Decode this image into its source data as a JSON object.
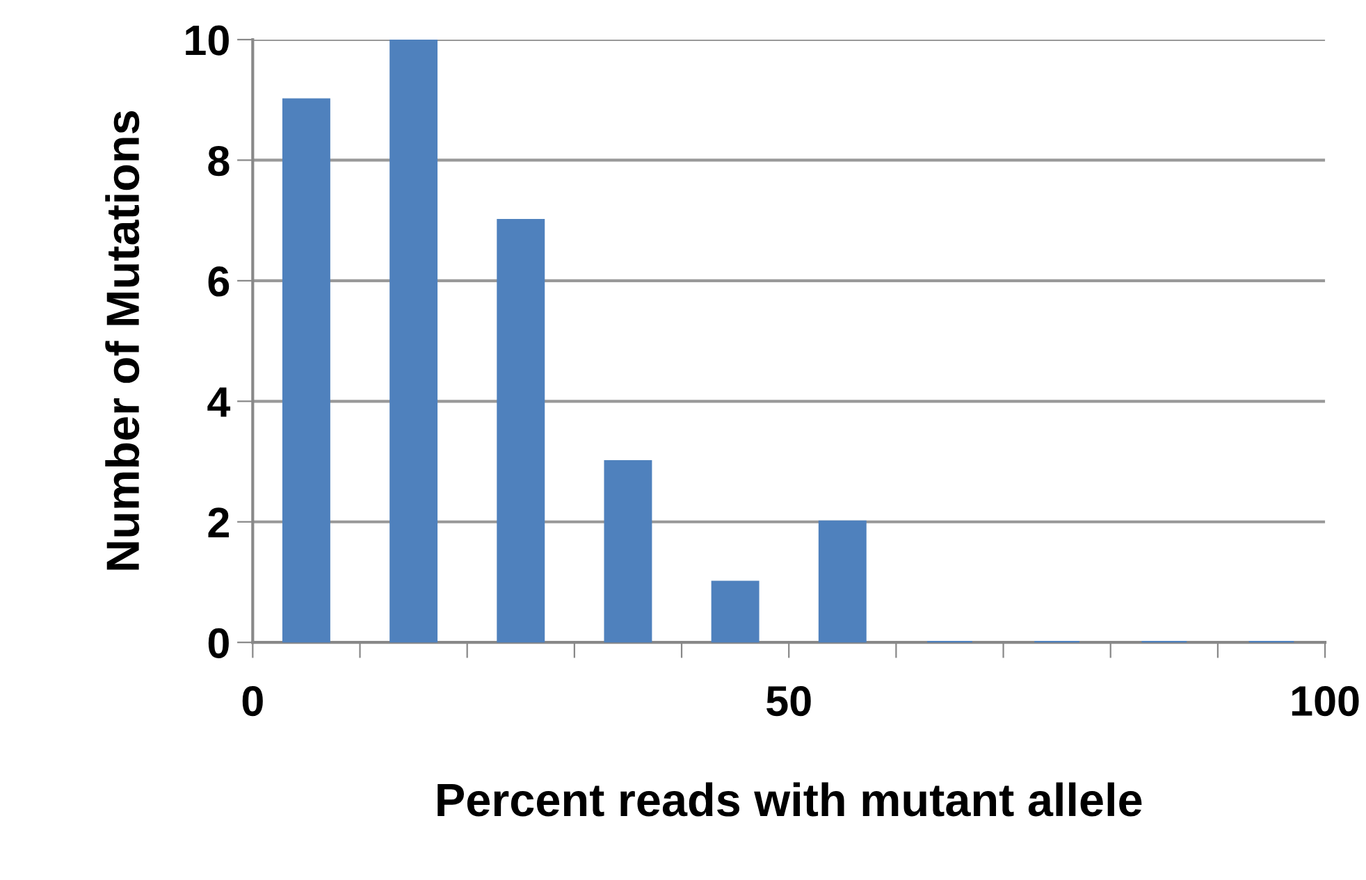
{
  "chart_data": {
    "type": "bar",
    "xlabel": "Percent reads with mutant allele",
    "ylabel": "Number of Mutations",
    "x": [
      5,
      15,
      25,
      35,
      45,
      55,
      65,
      75,
      85,
      95
    ],
    "values": [
      9,
      10,
      7,
      3,
      1,
      2,
      0,
      0,
      0,
      0
    ],
    "color": "#4f81bd",
    "xlim": [
      0,
      100
    ],
    "ylim": [
      0,
      10
    ],
    "xticks": [
      0,
      {
        "value": 10,
        "label": null
      },
      {
        "value": 20,
        "label": null
      },
      {
        "value": 30,
        "label": null
      },
      {
        "value": 40,
        "label": null
      },
      50,
      {
        "value": 60,
        "label": null
      },
      {
        "value": 70,
        "label": null
      },
      {
        "value": 80,
        "label": null
      },
      {
        "value": 90,
        "label": null
      },
      100
    ],
    "yticks": [
      0,
      2,
      4,
      6,
      8,
      10
    ],
    "grid": "y"
  }
}
